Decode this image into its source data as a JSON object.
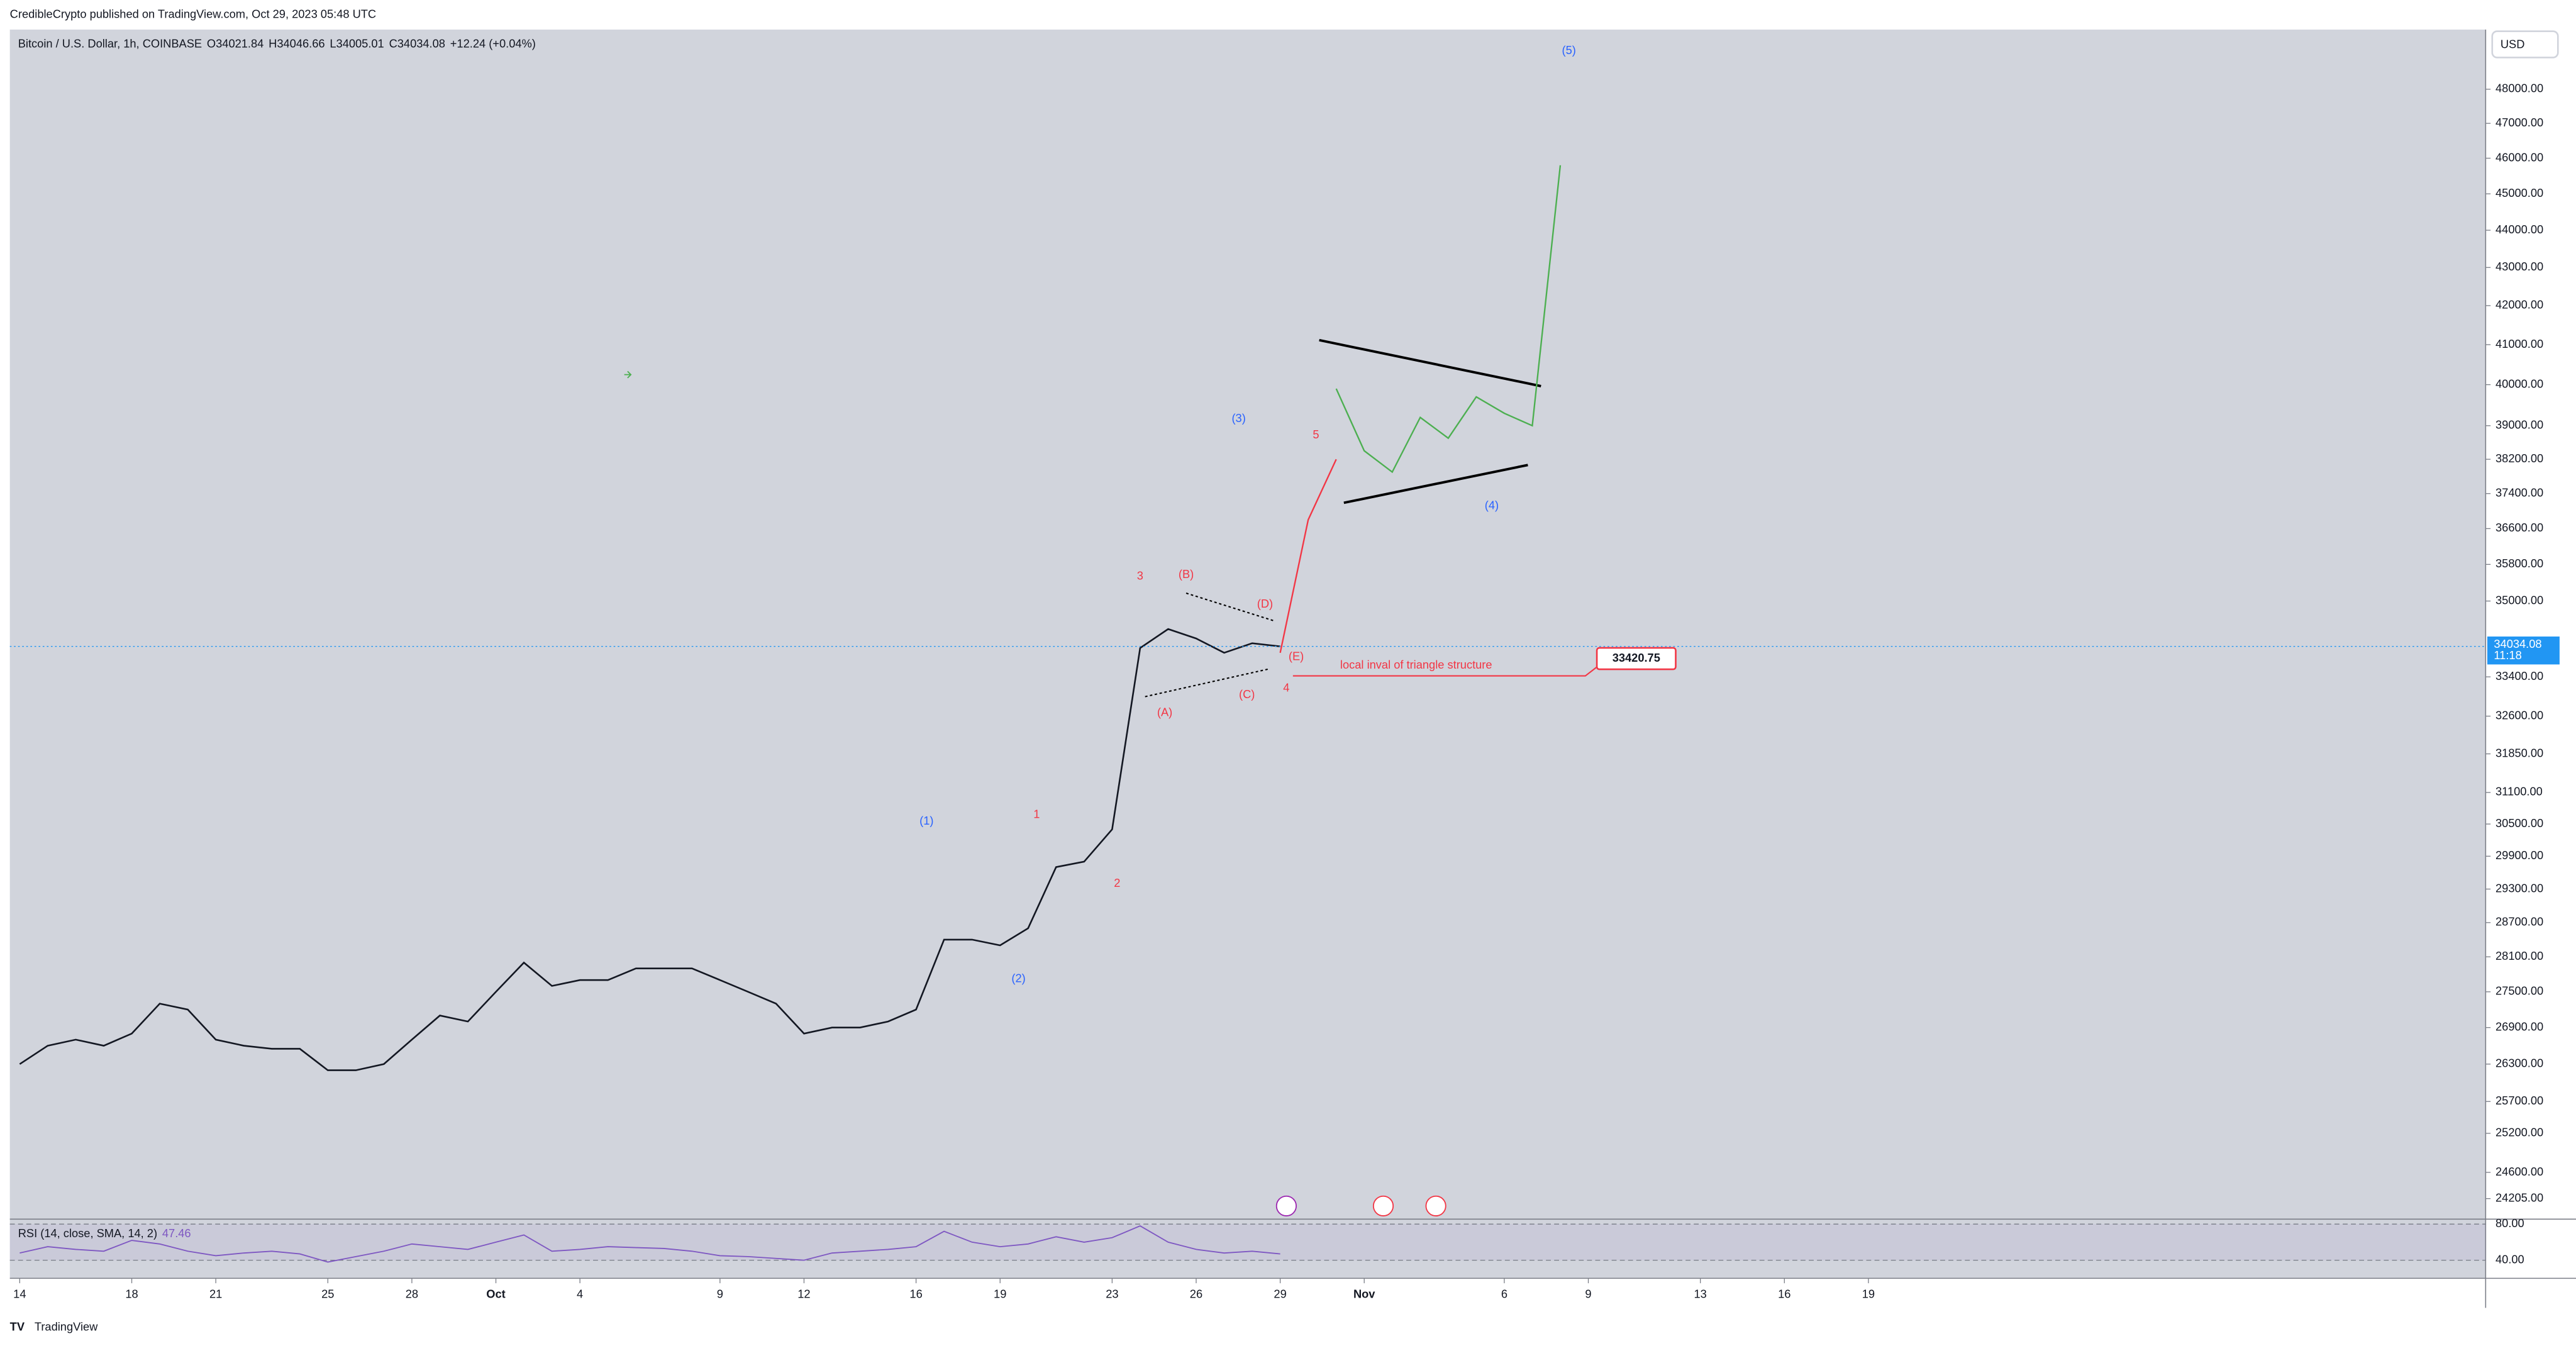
{
  "header": {
    "publisher": "CredibleCrypto published on TradingView.com, Oct 29, 2023 05:48 UTC"
  },
  "chart_data": {
    "type": "line",
    "symbol": "Bitcoin / U.S. Dollar, 1h, COINBASE",
    "ohlc": [
      "O34021.84",
      "H34046.66",
      "L34005.01",
      "C34034.08",
      "+12.24 (+0.04%)"
    ],
    "currency": "USD",
    "log_scale": true,
    "categories": [
      "14",
      null,
      null,
      null,
      "18",
      null,
      null,
      "21",
      null,
      null,
      null,
      "25",
      null,
      null,
      "28",
      null,
      null,
      "Oct",
      null,
      null,
      "4",
      null,
      null,
      null,
      null,
      "9",
      null,
      null,
      "12",
      null,
      null,
      null,
      "16",
      null,
      null,
      "19",
      null,
      null,
      null,
      "23",
      null,
      null,
      "26",
      null,
      null,
      "29",
      null,
      null,
      "Nov",
      null,
      null,
      null,
      null,
      "6",
      null,
      null,
      "9",
      null,
      null,
      null,
      "13",
      null,
      null,
      "16",
      null,
      null,
      "19"
    ],
    "series": [
      {
        "color": "#131722",
        "values": [
          26300,
          26600,
          26700,
          26600,
          26800,
          27300,
          27200,
          26700,
          26600,
          26550,
          26550,
          26200,
          26200,
          26300,
          26700,
          27100,
          27000,
          27500,
          28000,
          27600,
          27700,
          27700,
          27900,
          27900,
          27900,
          27700,
          27500,
          27300,
          26800,
          26900,
          26900,
          27000,
          27200,
          28400,
          28400,
          28300,
          28600,
          29700,
          29800,
          30400,
          34000,
          34400,
          34200,
          33900,
          34100,
          34034,
          null,
          null,
          null,
          null,
          null,
          null,
          null,
          null,
          null,
          null,
          null,
          null,
          null,
          null,
          null,
          null,
          null,
          null,
          null,
          null,
          null
        ]
      },
      {
        "color": "#f23645",
        "values": [
          null,
          null,
          null,
          null,
          null,
          null,
          null,
          null,
          null,
          null,
          null,
          null,
          null,
          null,
          null,
          null,
          null,
          null,
          null,
          null,
          null,
          null,
          null,
          null,
          null,
          null,
          null,
          null,
          null,
          null,
          null,
          null,
          null,
          null,
          null,
          null,
          null,
          null,
          null,
          null,
          null,
          null,
          null,
          null,
          null,
          33900,
          36800,
          38200,
          null,
          null,
          null,
          null,
          null,
          null,
          null,
          null,
          null,
          null,
          null,
          null,
          null,
          null,
          null,
          null,
          null,
          null,
          null
        ]
      },
      {
        "color": "#4caf50",
        "values": [
          null,
          null,
          null,
          null,
          null,
          null,
          null,
          null,
          null,
          null,
          null,
          null,
          null,
          null,
          null,
          null,
          null,
          null,
          null,
          null,
          null,
          null,
          null,
          null,
          null,
          null,
          null,
          null,
          null,
          null,
          null,
          null,
          null,
          null,
          null,
          null,
          null,
          null,
          null,
          null,
          null,
          null,
          null,
          null,
          null,
          null,
          null,
          39900,
          38400,
          37900,
          39200,
          38700,
          39700,
          39300,
          39000,
          45800,
          null,
          null,
          null,
          null,
          null,
          null,
          null,
          null,
          null,
          null,
          null
        ]
      }
    ],
    "ylim": [
      23900,
      49800
    ],
    "yticks": [
      {
        "value": 48000,
        "label": "48000.00"
      },
      {
        "value": 47000,
        "label": "47000.00"
      },
      {
        "value": 46000,
        "label": "46000.00"
      },
      {
        "value": 45000,
        "label": "45000.00"
      },
      {
        "value": 44000,
        "label": "44000.00"
      },
      {
        "value": 43000,
        "label": "43000.00"
      },
      {
        "value": 42000,
        "label": "42000.00"
      },
      {
        "value": 41000,
        "label": "41000.00"
      },
      {
        "value": 40000,
        "label": "40000.00"
      },
      {
        "value": 39000,
        "label": "39000.00"
      },
      {
        "value": 38200,
        "label": "38200.00"
      },
      {
        "value": 37400,
        "label": "37400.00"
      },
      {
        "value": 36600,
        "label": "36600.00"
      },
      {
        "value": 35800,
        "label": "35800.00"
      },
      {
        "value": 35000,
        "label": "35000.00"
      },
      {
        "value": 33400,
        "label": "33400.00"
      },
      {
        "value": 32600,
        "label": "32600.00"
      },
      {
        "value": 31850,
        "label": "31850.00"
      },
      {
        "value": 31100,
        "label": "31100.00"
      },
      {
        "value": 30500,
        "label": "30500.00"
      },
      {
        "value": 29900,
        "label": "29900.00"
      },
      {
        "value": 29300,
        "label": "29300.00"
      },
      {
        "value": 28700,
        "label": "28700.00"
      },
      {
        "value": 28100,
        "label": "28100.00"
      },
      {
        "value": 27500,
        "label": "27500.00"
      },
      {
        "value": 26900,
        "label": "26900.00"
      },
      {
        "value": 26300,
        "label": "26300.00"
      },
      {
        "value": 25700,
        "label": "25700.00"
      },
      {
        "value": 25200,
        "label": "25200.00"
      },
      {
        "value": 24600,
        "label": "24600.00"
      },
      {
        "value": 24205,
        "label": "24205.00"
      }
    ],
    "last_price": 34034.08,
    "countdown": "11:18",
    "inval_level": 33420.75,
    "annotations": [
      "(1)",
      "(2)",
      "(3)",
      "(4)",
      "(5)",
      "1",
      "2",
      "3",
      "4",
      "5",
      "(A)",
      "(B)",
      "(C)",
      "(D)",
      "(E)",
      "local inval of triangle structure"
    ],
    "rsi": {
      "title": "RSI (14, close, SMA, 14, 2)",
      "last": 47.46,
      "color": "#7e57c2",
      "values": [
        48,
        55,
        52,
        50,
        62,
        58,
        50,
        45,
        48,
        50,
        47,
        38,
        44,
        50,
        58,
        55,
        52,
        60,
        68,
        50,
        52,
        55,
        54,
        53,
        50,
        45,
        44,
        42,
        40,
        48,
        50,
        52,
        55,
        72,
        60,
        55,
        58,
        66,
        60,
        65,
        78,
        60,
        52,
        48,
        50,
        47,
        null,
        null,
        null,
        null,
        null,
        null,
        null,
        null,
        null,
        null,
        null,
        null,
        null,
        null,
        null,
        null,
        null,
        null,
        null,
        null,
        null
      ],
      "ylim": [
        20,
        85.5
      ],
      "yticks": [
        {
          "value": 80,
          "label": "80.00"
        },
        {
          "value": 40,
          "label": "40.00"
        }
      ]
    }
  },
  "footer": "TradingView"
}
